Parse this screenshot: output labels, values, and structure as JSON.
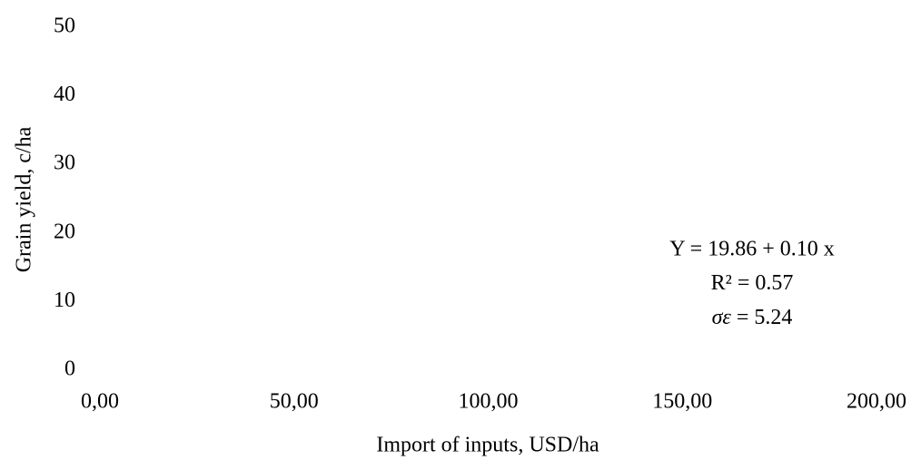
{
  "chart_data": {
    "type": "scatter",
    "xlabel": "Import of inputs, USD/ha",
    "ylabel": "Grain yield, c/ha",
    "xlim": [
      0,
      200
    ],
    "ylim": [
      0,
      50
    ],
    "xticks": [
      {
        "value": 0,
        "label": "0,00"
      },
      {
        "value": 50,
        "label": "50,00"
      },
      {
        "value": 100,
        "label": "100,00"
      },
      {
        "value": 150,
        "label": "150,00"
      },
      {
        "value": 200,
        "label": "200,00"
      }
    ],
    "yticks": [
      0,
      10,
      20,
      30,
      40,
      50
    ],
    "annotations": [
      "Y = 19.86 + 0.10 x",
      "R² = 0.57",
      "σε = 5.24"
    ]
  }
}
